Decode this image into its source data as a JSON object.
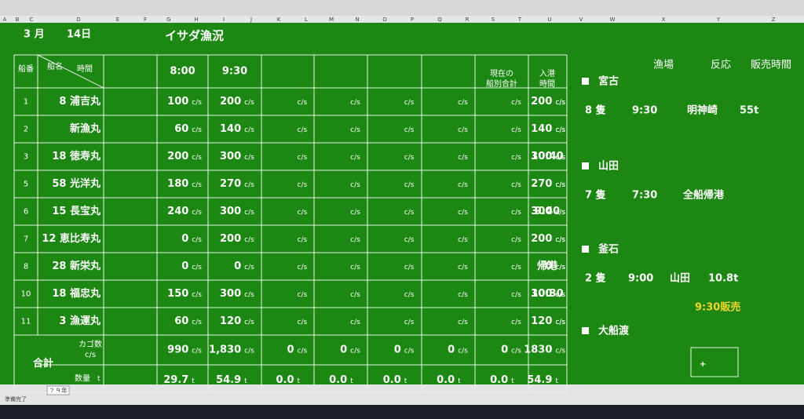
{
  "header": {
    "month": "3 月",
    "day": "14日",
    "title": "イサダ漁況"
  },
  "columns": [
    "A",
    "B",
    "C",
    "D",
    "E",
    "F",
    "G",
    "H",
    "I",
    "J",
    "K",
    "L",
    "M",
    "N",
    "O",
    "P",
    "Q",
    "R",
    "S",
    "T",
    "U",
    "V",
    "W",
    "X",
    "Y",
    "Z"
  ],
  "table": {
    "headers": {
      "no": "船番",
      "name": "船名",
      "time": "時間",
      "times": [
        "8:00",
        "9:30"
      ],
      "total": [
        "現在の",
        "船別合計"
      ],
      "arrival": [
        "入港",
        "時間"
      ]
    },
    "unit_cs": "c/s",
    "unit_t": "t",
    "rows": [
      {
        "no": "1",
        "name": "8 浦吉丸",
        "values": [
          "100",
          "200"
        ],
        "total": "200",
        "arrival": null
      },
      {
        "no": "2",
        "name": "新漁丸",
        "values": [
          "60",
          "140"
        ],
        "total": "140",
        "arrival": null
      },
      {
        "no": "3",
        "name": "18 徳寿丸",
        "values": [
          "200",
          "300"
        ],
        "total": "300",
        "arrival": "10:40"
      },
      {
        "no": "5",
        "name": "58 光洋丸",
        "values": [
          "180",
          "270"
        ],
        "total": "270",
        "arrival": null
      },
      {
        "no": "6",
        "name": "15 長宝丸",
        "values": [
          "240",
          "300"
        ],
        "total": "300",
        "arrival": "9:40"
      },
      {
        "no": "7",
        "name": "12 恵比寿丸",
        "values": [
          "0",
          "200"
        ],
        "total": "200",
        "arrival": null
      },
      {
        "no": "8",
        "name": "28 新栄丸",
        "values": [
          "0",
          "0"
        ],
        "total": "0",
        "arrival": "帰港"
      },
      {
        "no": "10",
        "name": "18 福忠丸",
        "values": [
          "150",
          "300"
        ],
        "total": "300",
        "arrival": "10:30"
      },
      {
        "no": "11",
        "name": "3 漁運丸",
        "values": [
          "60",
          "120"
        ],
        "total": "120",
        "arrival": null
      }
    ],
    "sum": {
      "label": "合計",
      "cs_label": [
        "カゴ数",
        "c/s"
      ],
      "qty_label": "数量",
      "cs": [
        "990",
        "1,830",
        "0",
        "0",
        "0",
        "0",
        "0",
        "1830"
      ],
      "qty": [
        "29.7",
        "54.9",
        "0.0",
        "0.0",
        "0.0",
        "0.0",
        "0.0",
        "54.9"
      ]
    }
  },
  "side": {
    "headers": [
      "漁場",
      "反応",
      "販売時間"
    ],
    "areas": [
      {
        "name": "宮古",
        "items": [
          "8 隻",
          "9:30",
          "明神崎",
          "55t"
        ]
      },
      {
        "name": "山田",
        "items": [
          "7 隻",
          "7:30",
          "全船帰港"
        ]
      },
      {
        "name": "釜石",
        "items": [
          "2 隻",
          "9:00",
          "山田",
          "10.8t"
        ],
        "note": "9:30販売"
      },
      {
        "name": "大船渡",
        "items": []
      }
    ]
  },
  "sheet_tab": "２９年",
  "status": "準備完了"
}
